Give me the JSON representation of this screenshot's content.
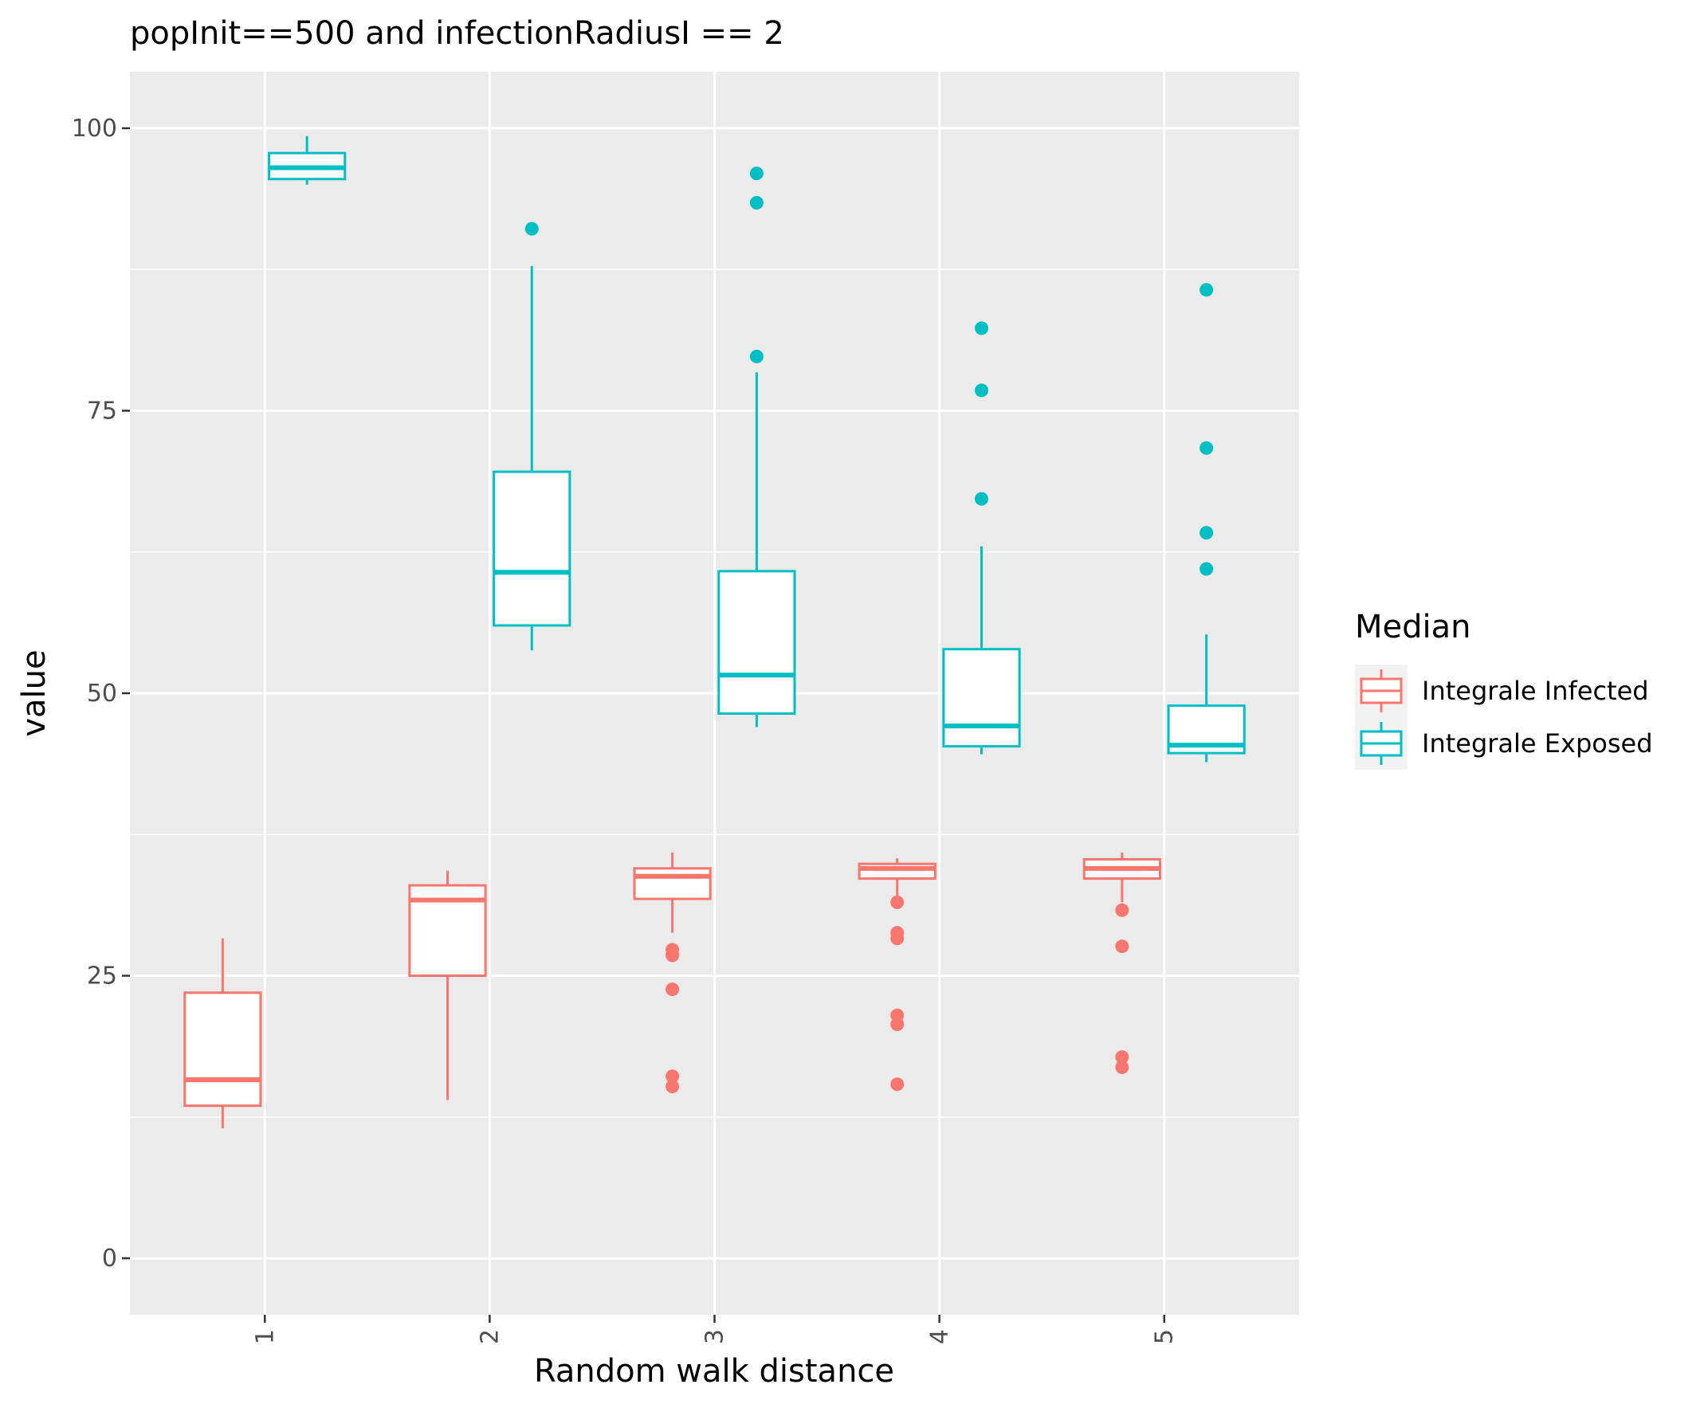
{
  "chart_data": {
    "type": "boxplot",
    "title": "popInit==500 and infectionRadiusI == 2",
    "xlabel": "Random walk distance",
    "ylabel": "value",
    "categories": [
      "1",
      "2",
      "3",
      "4",
      "5"
    ],
    "ylim": [
      -5,
      105
    ],
    "yticks": [
      0,
      25,
      50,
      75,
      100
    ],
    "grid": true,
    "legend": {
      "title": "Median",
      "placement": "right",
      "entries": [
        "Integrale Infected",
        "Integrale Exposed"
      ]
    },
    "series": [
      {
        "name": "Integrale Infected",
        "color": "#F8766D",
        "boxes": [
          {
            "category": "1",
            "lower_whisker": 11.5,
            "q1": 13.5,
            "median": 15.8,
            "q3": 23.5,
            "upper_whisker": 28.3,
            "outliers": []
          },
          {
            "category": "2",
            "lower_whisker": 14.0,
            "q1": 25.0,
            "median": 31.7,
            "q3": 33.0,
            "upper_whisker": 34.3,
            "outliers": []
          },
          {
            "category": "3",
            "lower_whisker": 28.8,
            "q1": 31.8,
            "median": 33.8,
            "q3": 34.5,
            "upper_whisker": 35.9,
            "outliers": [
              27.3,
              26.8,
              23.8,
              16.1,
              15.2
            ]
          },
          {
            "category": "4",
            "lower_whisker": 32.0,
            "q1": 33.6,
            "median": 34.5,
            "q3": 34.9,
            "upper_whisker": 35.4,
            "outliers": [
              31.5,
              28.8,
              28.3,
              21.5,
              20.7,
              15.4
            ]
          },
          {
            "category": "5",
            "lower_whisker": 31.5,
            "q1": 33.6,
            "median": 34.5,
            "q3": 35.3,
            "upper_whisker": 35.9,
            "outliers": [
              30.8,
              27.6,
              17.8,
              16.9
            ]
          }
        ]
      },
      {
        "name": "Integrale Exposed",
        "color": "#00BFC4",
        "boxes": [
          {
            "category": "1",
            "lower_whisker": 95.0,
            "q1": 95.5,
            "median": 96.5,
            "q3": 97.8,
            "upper_whisker": 99.3,
            "outliers": []
          },
          {
            "category": "2",
            "lower_whisker": 53.8,
            "q1": 56.0,
            "median": 60.7,
            "q3": 69.6,
            "upper_whisker": 87.8,
            "outliers": [
              91.1
            ]
          },
          {
            "category": "3",
            "lower_whisker": 47.0,
            "q1": 48.2,
            "median": 51.6,
            "q3": 60.8,
            "upper_whisker": 78.4,
            "outliers": [
              96.0,
              93.4,
              79.8
            ]
          },
          {
            "category": "4",
            "lower_whisker": 44.6,
            "q1": 45.3,
            "median": 47.1,
            "q3": 53.9,
            "upper_whisker": 63.0,
            "outliers": [
              82.3,
              76.8,
              67.2
            ]
          },
          {
            "category": "5",
            "lower_whisker": 43.9,
            "q1": 44.7,
            "median": 45.4,
            "q3": 48.9,
            "upper_whisker": 55.2,
            "outliers": [
              85.7,
              71.7,
              64.2,
              61.0
            ]
          }
        ]
      }
    ]
  }
}
